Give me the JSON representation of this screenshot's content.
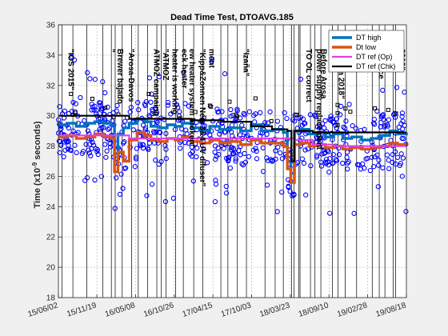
{
  "chart_data": {
    "type": "line",
    "title": "Dead Time Test, DTOAVG.185",
    "ylabel": "Time (x10^{-9} seconds)",
    "ylabel_display": "Time (x10",
    "ylabel_exp": "-9",
    "ylabel_suffix": " seconds)",
    "xlabel": "",
    "xlim": [
      "2015-06-02",
      "2019-08-18"
    ],
    "ylim": [
      18,
      36
    ],
    "yticks": [
      18,
      20,
      22,
      24,
      26,
      28,
      30,
      32,
      34,
      36
    ],
    "xticks": [
      {
        "date": "2015-06-02",
        "label": "15/06/02"
      },
      {
        "date": "2015-11-19",
        "label": "15/11/19"
      },
      {
        "date": "2016-05-08",
        "label": "16/05/08"
      },
      {
        "date": "2016-10-26",
        "label": "16/10/26"
      },
      {
        "date": "2017-04-15",
        "label": "17/04/15"
      },
      {
        "date": "2017-10-03",
        "label": "17/10/03"
      },
      {
        "date": "2018-03-23",
        "label": "18/03/23"
      },
      {
        "date": "2018-09-10",
        "label": "18/09/10"
      },
      {
        "date": "2019-02-28",
        "label": "19/02/28"
      },
      {
        "date": "2019-08-18",
        "label": "19/08/18"
      }
    ],
    "grid": true,
    "legend_position": "top-right",
    "legend": [
      {
        "label": "DT high",
        "color": "#0072BD"
      },
      {
        "label": "Dt low",
        "color": "#D95319"
      },
      {
        "label": "DT ref (Op)",
        "color": "#E040E0"
      },
      {
        "label": "DT ref (Chk)",
        "color": "#000000"
      }
    ],
    "events": [
      {
        "date": "2015-06-18",
        "label": "\"IOS 2015\""
      },
      {
        "date": "2015-12-15",
        "label": "\""
      },
      {
        "date": "2016-01-22",
        "label": "Brewer bajado"
      },
      {
        "date": "2016-03-10",
        "label": "\"Arosa-Davos"
      },
      {
        "date": "2016-06-30",
        "label": "ATMOZ campaing"
      },
      {
        "date": "2016-08-10",
        "label": "\"ATMOZ"
      },
      {
        "date": "2016-09-20",
        "label": "heater is working"
      },
      {
        "date": "2016-11-01",
        "label": "eck heater"
      },
      {
        "date": "2016-12-05",
        "label": "ew heater system broken\""
      },
      {
        "date": "2017-01-20",
        "label": "\"Kipp&Zonnen New 3&4 UV difuser\""
      },
      {
        "date": "2017-03-01",
        "label": "ment"
      },
      {
        "date": "2017-08-01",
        "label": "\"Izaña\""
      },
      {
        "date": "2018-05-05",
        "label": "TO OL correct"
      },
      {
        "date": "2018-06-20",
        "label": "power supply replacement"
      },
      {
        "date": "2018-07-10",
        "label": "Before Arosa"
      },
      {
        "date": "2018-09-25",
        "label": "\"Arosa  2018\""
      },
      {
        "date": "2019-03-20",
        "label": "tenance"
      },
      {
        "date": "2019-06-20",
        "label": "2019\""
      }
    ],
    "event_lines_only": [
      "2015-08-05",
      "2015-10-05",
      "2016-02-08",
      "2016-04-20",
      "2016-05-20",
      "2016-08-30",
      "2017-05-20",
      "2017-06-20",
      "2017-09-10",
      "2017-12-01",
      "2018-01-15",
      "2018-02-20",
      "2018-03-28",
      "2018-04-08",
      "2018-04-30",
      "2018-08-05",
      "2018-10-20",
      "2018-11-20",
      "2019-01-10",
      "2019-04-20",
      "2019-05-15",
      "2019-07-01"
    ],
    "series": [
      {
        "name": "DT high",
        "color": "#0072BD",
        "x": [
          "2015-06-02",
          "2015-07-10",
          "2015-08-20",
          "2015-09-30",
          "2015-11-10",
          "2015-12-20",
          "2016-01-20",
          "2016-02-05",
          "2016-02-20",
          "2016-03-15",
          "2016-04-10",
          "2016-05-15",
          "2016-06-15",
          "2016-07-15",
          "2016-08-20",
          "2016-09-25",
          "2016-10-30",
          "2016-12-01",
          "2017-01-10",
          "2017-02-20",
          "2017-04-01",
          "2017-05-15",
          "2017-06-30",
          "2017-08-15",
          "2017-10-01",
          "2017-11-15",
          "2018-01-05",
          "2018-02-20",
          "2018-03-10",
          "2018-03-25",
          "2018-04-10",
          "2018-05-10",
          "2018-06-15",
          "2018-07-20",
          "2018-08-25",
          "2018-10-01",
          "2018-11-10",
          "2018-12-20",
          "2019-02-01",
          "2019-03-15",
          "2019-04-25",
          "2019-06-05",
          "2019-07-10",
          "2019-08-18"
        ],
        "values": [
          29.4,
          29.5,
          29.3,
          29.5,
          29.6,
          29.5,
          29.4,
          27.5,
          28.8,
          29.2,
          29.5,
          29.8,
          29.6,
          29.3,
          29.2,
          29.4,
          29.3,
          29.5,
          29.2,
          29.0,
          29.3,
          29.1,
          29.2,
          29.0,
          29.4,
          29.0,
          29.1,
          28.9,
          27.0,
          26.2,
          29.0,
          29.1,
          28.8,
          28.9,
          28.6,
          28.8,
          28.5,
          28.6,
          28.4,
          28.5,
          28.7,
          29.0,
          28.8,
          28.9
        ]
      },
      {
        "name": "Dt low",
        "color": "#D95319",
        "x": [
          "2015-06-02",
          "2015-07-10",
          "2015-08-20",
          "2015-09-30",
          "2015-11-10",
          "2015-12-20",
          "2016-01-20",
          "2016-02-05",
          "2016-02-20",
          "2016-03-15",
          "2016-04-10",
          "2016-05-15",
          "2016-06-15",
          "2016-07-15",
          "2016-08-20",
          "2016-09-25",
          "2016-10-30",
          "2016-12-01",
          "2017-01-10",
          "2017-02-20",
          "2017-04-01",
          "2017-05-15",
          "2017-06-30",
          "2017-08-15",
          "2017-10-01",
          "2017-11-15",
          "2018-01-05",
          "2018-02-20",
          "2018-03-10",
          "2018-03-25",
          "2018-04-10",
          "2018-05-10",
          "2018-06-15",
          "2018-07-20",
          "2018-08-25",
          "2018-10-01",
          "2018-11-10",
          "2018-12-20",
          "2019-02-01",
          "2019-03-15",
          "2019-04-25",
          "2019-06-05",
          "2019-07-10",
          "2019-08-18"
        ],
        "values": [
          28.6,
          28.7,
          28.5,
          28.6,
          28.8,
          28.6,
          28.5,
          26.3,
          27.6,
          27.0,
          28.4,
          28.9,
          28.7,
          28.4,
          28.3,
          28.5,
          28.4,
          28.6,
          28.3,
          28.2,
          28.4,
          28.2,
          28.3,
          28.1,
          28.4,
          28.2,
          28.2,
          28.0,
          26.5,
          25.6,
          28.1,
          28.2,
          28.0,
          28.1,
          27.9,
          28.0,
          27.8,
          27.9,
          27.8,
          27.9,
          28.0,
          28.2,
          28.1,
          28.2
        ]
      },
      {
        "name": "DT ref (Op)",
        "color": "#E040E0",
        "x": [
          "2015-06-02",
          "2016-01-20",
          "2016-04-10",
          "2017-01-10",
          "2017-10-01",
          "2018-03-10",
          "2018-04-10",
          "2018-07-01",
          "2018-10-01",
          "2019-02-01",
          "2019-08-18"
        ],
        "values": [
          28.7,
          28.7,
          28.5,
          28.5,
          28.5,
          28.5,
          28.4,
          28.1,
          28.0,
          28.0,
          28.0
        ]
      },
      {
        "name": "DT ref (Chk)",
        "color": "#000000",
        "x": [
          "2015-06-02",
          "2015-08-01",
          "2015-11-01",
          "2016-01-20",
          "2016-04-10",
          "2016-07-01",
          "2017-01-10",
          "2017-06-01",
          "2017-10-01",
          "2018-01-01",
          "2018-03-10",
          "2018-03-28",
          "2018-04-10",
          "2018-07-01",
          "2018-10-01",
          "2019-02-01",
          "2019-08-18"
        ],
        "values": [
          30.0,
          30.0,
          30.0,
          30.0,
          29.8,
          29.8,
          29.7,
          29.6,
          29.3,
          29.1,
          29.0,
          27.0,
          29.0,
          28.9,
          28.9,
          28.9,
          28.9
        ]
      }
    ]
  }
}
